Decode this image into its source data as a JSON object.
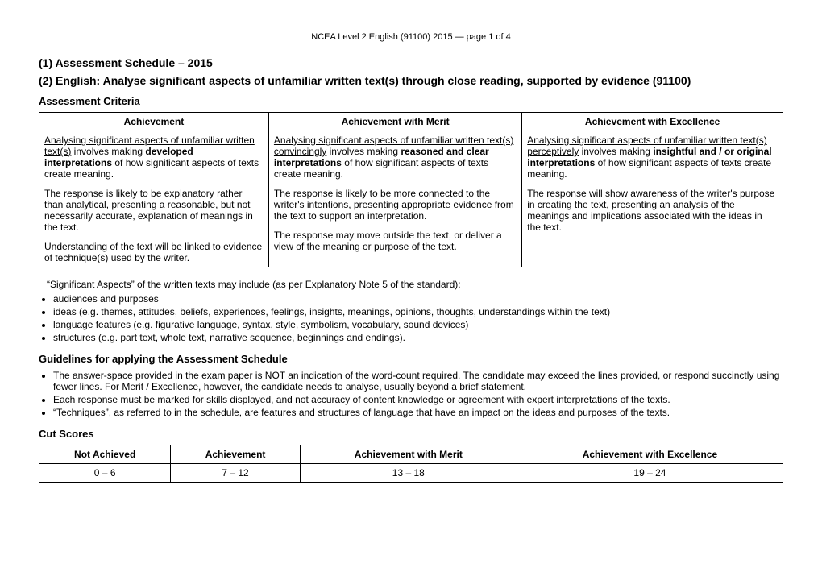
{
  "page_header": "NCEA Level 2 English (91100) 2015 — page 1 of 4",
  "heading1": "(1) Assessment Schedule – 2015",
  "heading2": "(2) English: Analyse significant aspects of unfamiliar written text(s) through close reading, supported by evidence (91100)",
  "criteria_heading": "Assessment Criteria",
  "criteria_table": {
    "headers": [
      "Achievement",
      "Achievement with Merit",
      "Achievement with Excellence"
    ],
    "rows": [
      {
        "achievement": {
          "p1_underline": "Analysing significant aspects of unfamiliar written text(s)",
          "p1_rest_a": " involves making ",
          "p1_bold": "developed interpretations",
          "p1_rest_b": " of how significant aspects of texts create meaning.",
          "p2": "The response is likely to be explanatory rather than analytical, presenting a reasonable, but not necessarily accurate, explanation of meanings in the text.",
          "p3": "Understanding of the text will be linked to evidence of technique(s) used by the writer."
        },
        "merit": {
          "p1_underline": "Analysing significant aspects of unfamiliar written text(s) convincingly",
          "p1_rest_a": " involves making ",
          "p1_bold": "reasoned and clear interpretations",
          "p1_rest_b": " of how significant aspects of texts create meaning.",
          "p2": "The response is likely to be more connected to the writer's intentions, presenting appropriate evidence from the text to support an interpretation.",
          "p3": "The response may move outside the text, or deliver a view of the meaning or purpose of the text."
        },
        "excellence": {
          "p1_underline": "Analysing significant aspects of unfamiliar written text(s) perceptively",
          "p1_rest_a": " involves making ",
          "p1_bold": "insightful and / or original interpretations",
          "p1_rest_b": " of how significant aspects of texts create meaning.",
          "p2": "The response will show awareness of the writer's purpose in creating the text, presenting an analysis of the meanings and implications associated with the ideas in the text.",
          "p3": ""
        }
      }
    ]
  },
  "aspects_intro": "“Significant Aspects” of the written texts may include (as per Explanatory Note 5 of the standard):",
  "aspects_bullets": [
    "audiences and purposes",
    "ideas (e.g. themes, attitudes, beliefs, experiences, feelings, insights, meanings, opinions, thoughts, understandings within the text)",
    "language features (e.g. figurative language, syntax, style, symbolism, vocabulary, sound devices)",
    "structures (e.g. part text, whole text, narrative sequence, beginnings and endings)."
  ],
  "guidelines_heading": "Guidelines for applying the Assessment Schedule",
  "guidelines_bullets": [
    "The answer-space provided in the exam paper is NOT an indication of the word-count required. The candidate may exceed the lines provided, or respond succinctly using fewer lines. For Merit / Excellence, however, the candidate needs to analyse, usually beyond a brief statement.",
    "Each response must be marked for skills displayed, and not accuracy of content knowledge or agreement with expert interpretations of the texts.",
    "“Techniques”, as referred to in the schedule, are features and structures of language that have an impact on the ideas and purposes of the texts."
  ],
  "cut_heading": "Cut Scores",
  "cut_table": {
    "headers": [
      "Not Achieved",
      "Achievement",
      "Achievement with Merit",
      "Achievement with Excellence"
    ],
    "row": [
      "0 – 6",
      "7 – 12",
      "13 – 18",
      "19 – 24"
    ]
  }
}
